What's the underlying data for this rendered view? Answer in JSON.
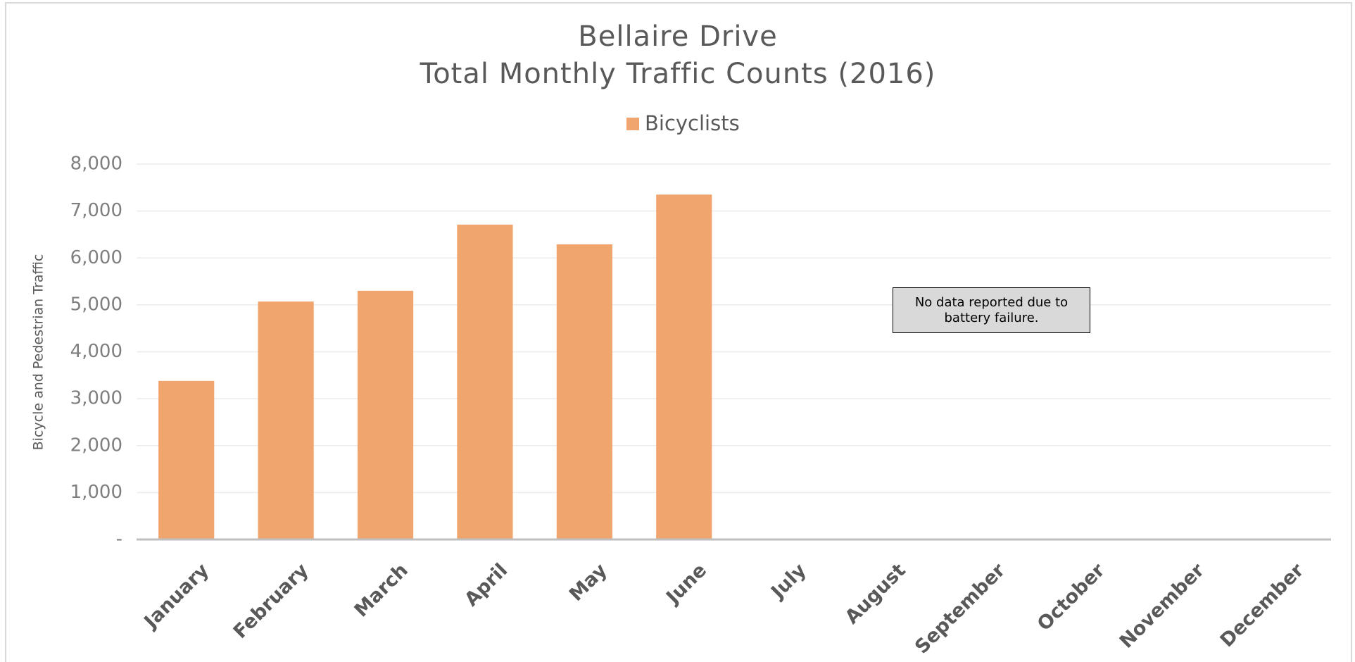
{
  "chart_data": {
    "type": "bar",
    "title": "Bellaire Drive",
    "subtitle": "Total Monthly Traffic Counts (2016)",
    "y_axis_label": "Bicycle and Pedestrian Traffic",
    "annotation": "No data reported due to battery failure.",
    "legend": "top",
    "grid": true,
    "categories": [
      "January",
      "February",
      "March",
      "April",
      "May",
      "June",
      "July",
      "August",
      "September",
      "October",
      "November",
      "December"
    ],
    "series": [
      {
        "name": "Bicyclists",
        "color": "#f1a56e",
        "values": [
          3380,
          5070,
          5300,
          6710,
          6290,
          7350,
          null,
          null,
          null,
          null,
          null,
          null
        ]
      }
    ],
    "ylim": [
      0,
      8000
    ],
    "yticks": [
      {
        "value": 0,
        "label": "-"
      },
      {
        "value": 1000,
        "label": "1,000"
      },
      {
        "value": 2000,
        "label": "2,000"
      },
      {
        "value": 3000,
        "label": "3,000"
      },
      {
        "value": 4000,
        "label": "4,000"
      },
      {
        "value": 5000,
        "label": "5,000"
      },
      {
        "value": 6000,
        "label": "6,000"
      },
      {
        "value": 7000,
        "label": "7,000"
      },
      {
        "value": 8000,
        "label": "8,000"
      }
    ]
  }
}
